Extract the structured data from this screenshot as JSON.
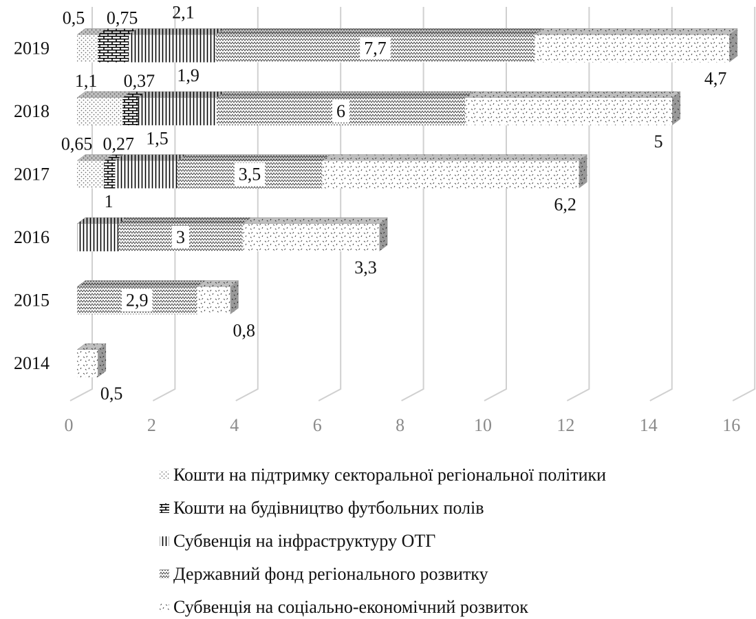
{
  "chart_data": {
    "type": "bar3d_stacked_horizontal",
    "categories": [
      "2014",
      "2015",
      "2016",
      "2017",
      "2018",
      "2019"
    ],
    "series": [
      {
        "name": "Кошти на підтримку секторальної регіональної політики",
        "color": "#707070",
        "values": [
          null,
          null,
          null,
          0.65,
          1.1,
          0.5
        ],
        "value_labels": [
          null,
          null,
          null,
          "0,65",
          "1,1",
          "0,5"
        ]
      },
      {
        "name": "Кошти на будівництво футбольних полів",
        "color": "#000000",
        "values": [
          null,
          null,
          null,
          0.27,
          0.37,
          0.75
        ],
        "value_labels": [
          null,
          null,
          null,
          "0,27",
          "0,37",
          "0,75"
        ]
      },
      {
        "name": "Субвенція на інфраструктуру ОТГ",
        "color": "#000000",
        "values": [
          null,
          null,
          1,
          1.5,
          1.9,
          2.1
        ],
        "value_labels": [
          null,
          null,
          "1",
          "1,5",
          "1,9",
          "2,1"
        ]
      },
      {
        "name": "Державний фонд регіонального розвитку",
        "color": "#303030",
        "values": [
          null,
          2.9,
          3,
          3.5,
          6,
          7.7
        ],
        "value_labels": [
          null,
          "2,9",
          "3",
          "3,5",
          "6",
          "7,7"
        ]
      },
      {
        "name": "Субвенція на соціально-економічний розвиток",
        "color": "#404040",
        "values": [
          0.5,
          0.8,
          3.3,
          6.2,
          5,
          4.7
        ],
        "value_labels": [
          "0,5",
          "0,8",
          "3,3",
          "6,2",
          "5",
          "4,7"
        ]
      }
    ],
    "xlim": [
      0,
      16
    ],
    "xticks": [
      0,
      2,
      4,
      6,
      8,
      10,
      12,
      14,
      16
    ],
    "grid": true,
    "legend": "bottom"
  }
}
